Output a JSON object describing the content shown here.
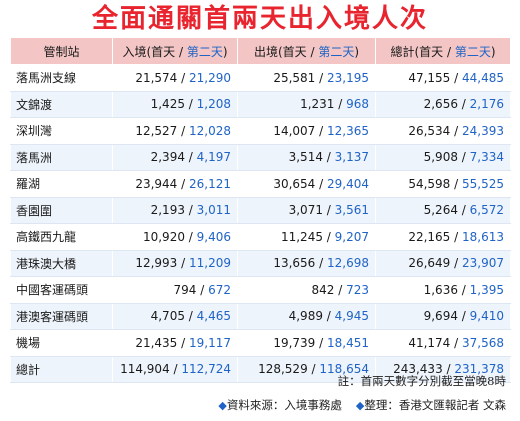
{
  "title": "全面通關首兩天出入境人次",
  "columns": {
    "station": "管制站",
    "entry_prefix": "入境(首天 / ",
    "exit_prefix": "出境(首天 / ",
    "total_prefix": "總計(首天 / ",
    "second_day": "第二天",
    "close_paren": ")"
  },
  "rows": [
    {
      "name": "落馬洲支線",
      "entry_d1": "21,574",
      "entry_d2": "21,290",
      "exit_d1": "25,581",
      "exit_d2": "23,195",
      "total_d1": "47,155",
      "total_d2": "44,485"
    },
    {
      "name": "文錦渡",
      "entry_d1": "1,425",
      "entry_d2": "1,208",
      "exit_d1": "1,231",
      "exit_d2": "968",
      "total_d1": "2,656",
      "total_d2": "2,176"
    },
    {
      "name": "深圳灣",
      "entry_d1": "12,527",
      "entry_d2": "12,028",
      "exit_d1": "14,007",
      "exit_d2": "12,365",
      "total_d1": "26,534",
      "total_d2": "24,393"
    },
    {
      "name": "落馬洲",
      "entry_d1": "2,394",
      "entry_d2": "4,197",
      "exit_d1": "3,514",
      "exit_d2": "3,137",
      "total_d1": "5,908",
      "total_d2": "7,334"
    },
    {
      "name": "羅湖",
      "entry_d1": "23,944",
      "entry_d2": "26,121",
      "exit_d1": "30,654",
      "exit_d2": "29,404",
      "total_d1": "54,598",
      "total_d2": "55,525"
    },
    {
      "name": "香園圍",
      "entry_d1": "2,193",
      "entry_d2": "3,011",
      "exit_d1": "3,071",
      "exit_d2": "3,561",
      "total_d1": "5,264",
      "total_d2": "6,572"
    },
    {
      "name": "高鐵西九龍",
      "entry_d1": "10,920",
      "entry_d2": "9,406",
      "exit_d1": "11,245",
      "exit_d2": "9,207",
      "total_d1": "22,165",
      "total_d2": "18,613"
    },
    {
      "name": "港珠澳大橋",
      "entry_d1": "12,993",
      "entry_d2": "11,209",
      "exit_d1": "13,656",
      "exit_d2": "12,698",
      "total_d1": "26,649",
      "total_d2": "23,907"
    },
    {
      "name": "中國客運碼頭",
      "entry_d1": "794",
      "entry_d2": "672",
      "exit_d1": "842",
      "exit_d2": "723",
      "total_d1": "1,636",
      "total_d2": "1,395"
    },
    {
      "name": "港澳客運碼頭",
      "entry_d1": "4,705",
      "entry_d2": "4,465",
      "exit_d1": "4,989",
      "exit_d2": "4,945",
      "total_d1": "9,694",
      "total_d2": "9,410"
    },
    {
      "name": "機場",
      "entry_d1": "21,435",
      "entry_d2": "19,117",
      "exit_d1": "19,739",
      "exit_d2": "18,451",
      "total_d1": "41,174",
      "total_d2": "37,568"
    },
    {
      "name": "總計",
      "entry_d1": "114,904",
      "entry_d2": "112,724",
      "exit_d1": "128,529",
      "exit_d2": "118,654",
      "total_d1": "243,433",
      "total_d2": "231,378"
    }
  ],
  "separator": " / ",
  "note": "註：首兩天數字分別截至當晚8時",
  "source": {
    "bullet": "◆",
    "data_source": "資料來源：入境事務處",
    "compiled_by": "整理：香港文匯報記者 文森"
  },
  "colors": {
    "title": "#e8242e",
    "header_bg": "#f3c6c5",
    "second_day_text": "#1f63c6",
    "stripe": "#eef4fb"
  }
}
